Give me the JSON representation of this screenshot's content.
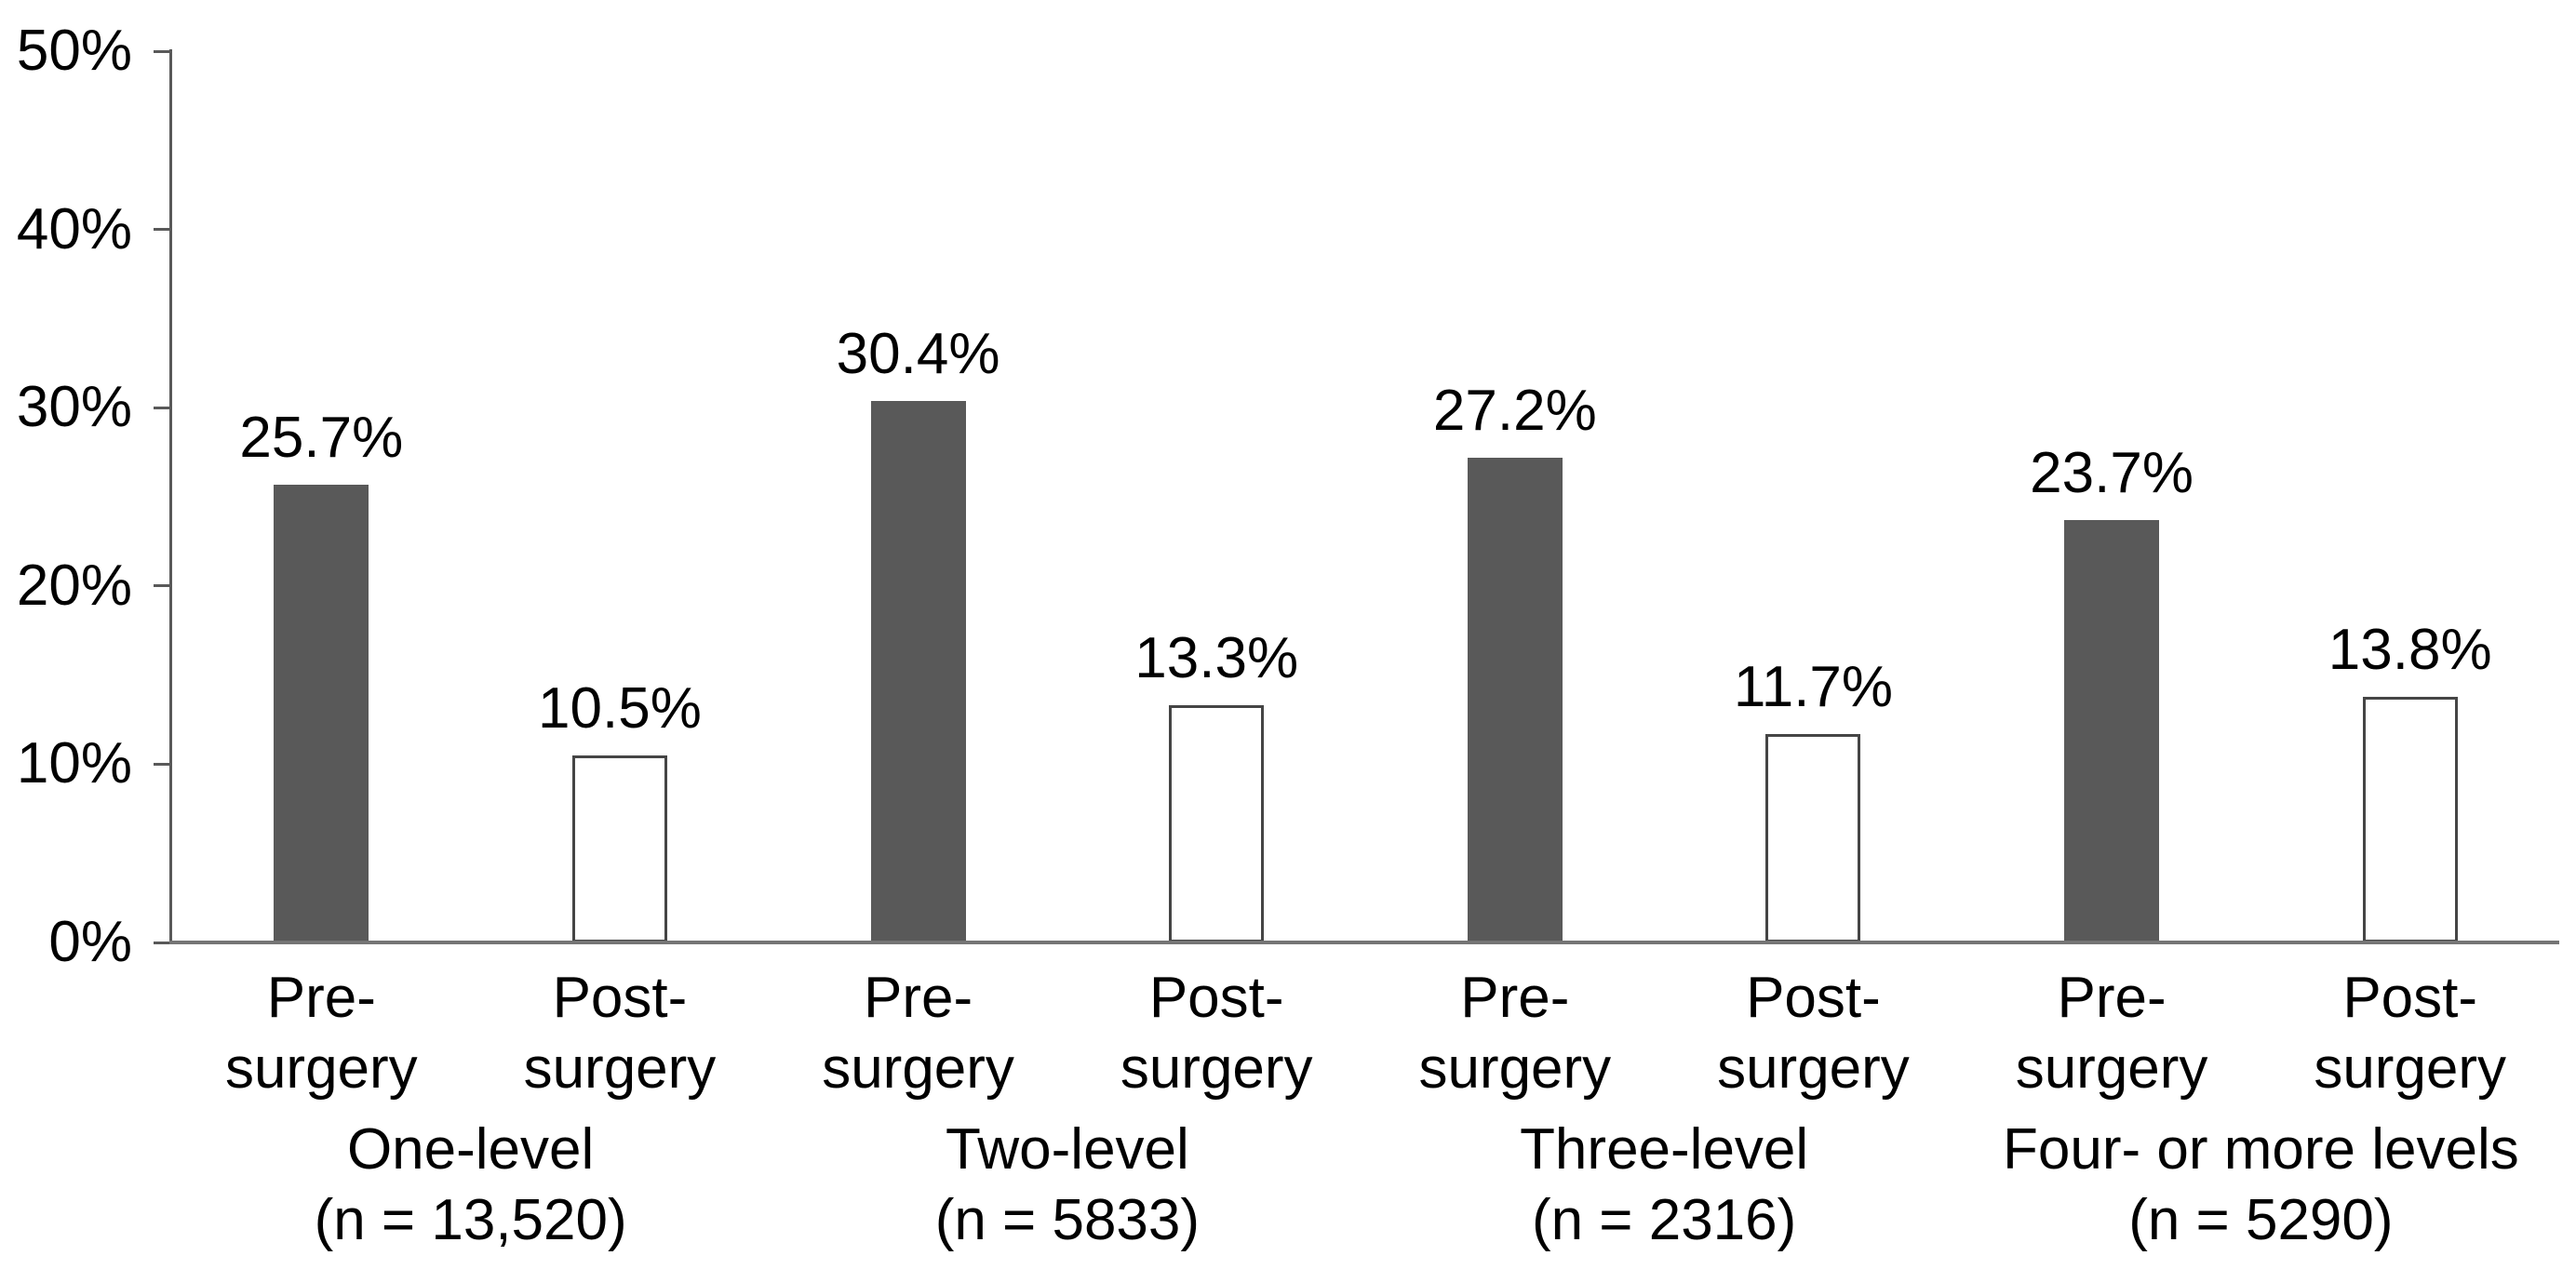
{
  "chart_data": {
    "type": "bar",
    "title": "",
    "xlabel": "",
    "ylabel": "",
    "grid": false,
    "legend": "none",
    "y_axis": {
      "min": 0,
      "max": 50,
      "tick_step": 10,
      "tick_labels": [
        "0%",
        "10%",
        "20%",
        "30%",
        "40%",
        "50%"
      ]
    },
    "groups": [
      {
        "label_line1": "One-level",
        "label_line2": "(n = 13,520)",
        "bars": [
          {
            "series": "Pre-surgery",
            "tick_line1": "Pre-",
            "tick_line2": "surgery",
            "value": 25.7,
            "value_label": "25.7%",
            "style": "filled"
          },
          {
            "series": "Post-surgery",
            "tick_line1": "Post-",
            "tick_line2": "surgery",
            "value": 10.5,
            "value_label": "10.5%",
            "style": "open"
          }
        ]
      },
      {
        "label_line1": "Two-level",
        "label_line2": "(n = 5833)",
        "bars": [
          {
            "series": "Pre-surgery",
            "tick_line1": "Pre-",
            "tick_line2": "surgery",
            "value": 30.4,
            "value_label": "30.4%",
            "style": "filled"
          },
          {
            "series": "Post-surgery",
            "tick_line1": "Post-",
            "tick_line2": "surgery",
            "value": 13.3,
            "value_label": "13.3%",
            "style": "open"
          }
        ]
      },
      {
        "label_line1": "Three-level",
        "label_line2": "(n = 2316)",
        "bars": [
          {
            "series": "Pre-surgery",
            "tick_line1": "Pre-",
            "tick_line2": "surgery",
            "value": 27.2,
            "value_label": "27.2%",
            "style": "filled"
          },
          {
            "series": "Post-surgery",
            "tick_line1": "Post-",
            "tick_line2": "surgery",
            "value": 11.7,
            "value_label": "11.7%",
            "style": "open"
          }
        ]
      },
      {
        "label_line1": "Four- or more levels",
        "label_line2": "(n = 5290)",
        "bars": [
          {
            "series": "Pre-surgery",
            "tick_line1": "Pre-",
            "tick_line2": "surgery",
            "value": 23.7,
            "value_label": "23.7%",
            "style": "filled"
          },
          {
            "series": "Post-surgery",
            "tick_line1": "Post-",
            "tick_line2": "surgery",
            "value": 13.8,
            "value_label": "13.8%",
            "style": "open"
          }
        ]
      }
    ],
    "colors": {
      "filled_bar": "#595959",
      "open_bar_fill": "#ffffff",
      "bar_border": "#454545",
      "axis_line": "#595959",
      "baseline": "#757575",
      "label_text": "#000000"
    }
  }
}
